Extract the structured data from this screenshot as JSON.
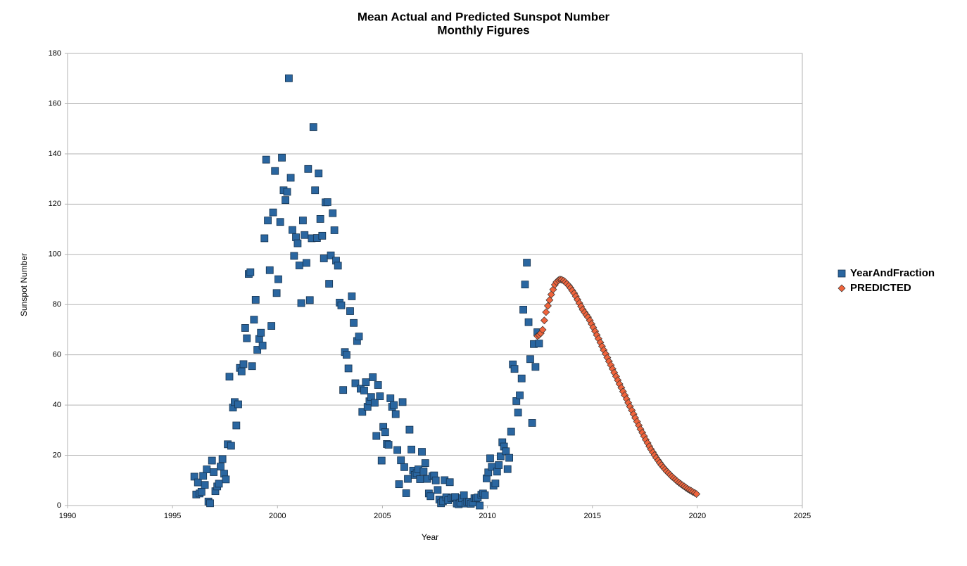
{
  "chart_data": {
    "type": "scatter",
    "title": "Mean Actual and Predicted Sunspot Number",
    "subtitle": "Monthly Figures",
    "x_label": "Year",
    "y_label": "Sunspot Number",
    "xlim": [
      1990,
      2025
    ],
    "xticks": [
      1990,
      1995,
      2000,
      2005,
      2010,
      2015,
      2020,
      2025
    ],
    "ylim": [
      0,
      180
    ],
    "yticks": [
      0,
      20,
      40,
      60,
      80,
      100,
      120,
      140,
      160,
      180
    ],
    "grid": true,
    "legend": "right",
    "series": [
      {
        "name": "YearAndFraction",
        "color": "#2a66a0",
        "marker": "square",
        "x": [
          1996.04,
          1996.13,
          1996.21,
          1996.29,
          1996.38,
          1996.46,
          1996.54,
          1996.63,
          1996.71,
          1996.79,
          1996.88,
          1996.96,
          1997.04,
          1997.13,
          1997.21,
          1997.29,
          1997.38,
          1997.46,
          1997.54,
          1997.63,
          1997.71,
          1997.79,
          1997.88,
          1997.96,
          1998.04,
          1998.13,
          1998.21,
          1998.29,
          1998.38,
          1998.46,
          1998.54,
          1998.63,
          1998.71,
          1998.79,
          1998.88,
          1998.96,
          1999.04,
          1999.13,
          1999.21,
          1999.29,
          1999.38,
          1999.46,
          1999.54,
          1999.63,
          1999.71,
          1999.79,
          1999.88,
          1999.96,
          2000.04,
          2000.13,
          2000.21,
          2000.29,
          2000.38,
          2000.46,
          2000.54,
          2000.63,
          2000.71,
          2000.79,
          2000.88,
          2000.96,
          2001.04,
          2001.13,
          2001.21,
          2001.29,
          2001.38,
          2001.46,
          2001.54,
          2001.63,
          2001.71,
          2001.79,
          2001.88,
          2001.96,
          2002.04,
          2002.13,
          2002.21,
          2002.29,
          2002.38,
          2002.46,
          2002.54,
          2002.63,
          2002.71,
          2002.79,
          2002.88,
          2002.96,
          2003.04,
          2003.13,
          2003.21,
          2003.29,
          2003.38,
          2003.46,
          2003.54,
          2003.63,
          2003.71,
          2003.79,
          2003.88,
          2003.96,
          2004.04,
          2004.13,
          2004.21,
          2004.29,
          2004.38,
          2004.46,
          2004.54,
          2004.63,
          2004.71,
          2004.79,
          2004.88,
          2004.96,
          2005.04,
          2005.13,
          2005.21,
          2005.29,
          2005.38,
          2005.46,
          2005.54,
          2005.63,
          2005.71,
          2005.79,
          2005.88,
          2005.96,
          2006.04,
          2006.13,
          2006.21,
          2006.29,
          2006.38,
          2006.46,
          2006.54,
          2006.63,
          2006.71,
          2006.79,
          2006.88,
          2006.96,
          2007.04,
          2007.13,
          2007.21,
          2007.29,
          2007.38,
          2007.46,
          2007.54,
          2007.63,
          2007.71,
          2007.79,
          2007.88,
          2007.96,
          2008.04,
          2008.13,
          2008.21,
          2008.29,
          2008.38,
          2008.46,
          2008.54,
          2008.63,
          2008.71,
          2008.79,
          2008.88,
          2008.96,
          2009.04,
          2009.13,
          2009.21,
          2009.29,
          2009.38,
          2009.46,
          2009.54,
          2009.63,
          2009.71,
          2009.79,
          2009.88,
          2009.96,
          2010.04,
          2010.13,
          2010.21,
          2010.29,
          2010.38,
          2010.46,
          2010.54,
          2010.63,
          2010.71,
          2010.79,
          2010.88,
          2010.96,
          2011.04,
          2011.13,
          2011.21,
          2011.29,
          2011.38,
          2011.46,
          2011.54,
          2011.63,
          2011.71,
          2011.79,
          2011.88,
          2011.96,
          2012.04,
          2012.13,
          2012.21,
          2012.29,
          2012.38,
          2012.46
        ],
        "values": [
          11.5,
          4.4,
          9.2,
          4.8,
          5.5,
          11.8,
          8.2,
          14.4,
          1.6,
          0.9,
          17.9,
          13.3,
          5.7,
          7.6,
          8.7,
          15.5,
          18.5,
          12.7,
          10.4,
          24.4,
          51.3,
          23.8,
          39.0,
          41.2,
          31.9,
          40.3,
          54.8,
          53.4,
          56.3,
          70.7,
          66.6,
          92.2,
          92.9,
          55.5,
          74.0,
          81.9,
          62.0,
          66.3,
          68.8,
          63.7,
          106.4,
          137.7,
          113.5,
          93.7,
          71.5,
          116.7,
          133.2,
          84.6,
          90.1,
          112.9,
          138.5,
          125.5,
          121.6,
          124.9,
          170.1,
          130.5,
          109.7,
          99.4,
          106.8,
          104.4,
          95.6,
          80.6,
          113.5,
          107.7,
          96.6,
          134.0,
          81.8,
          106.4,
          150.7,
          125.5,
          106.5,
          132.2,
          114.1,
          107.4,
          98.4,
          120.7,
          120.8,
          88.3,
          99.6,
          116.4,
          109.6,
          97.5,
          95.5,
          80.8,
          79.7,
          46.0,
          61.1,
          60.0,
          54.6,
          77.4,
          83.3,
          72.7,
          48.7,
          65.5,
          67.3,
          46.5,
          37.3,
          45.8,
          49.1,
          39.3,
          41.5,
          43.2,
          51.1,
          40.9,
          27.7,
          48.0,
          43.5,
          17.9,
          31.3,
          29.2,
          24.5,
          24.2,
          42.7,
          39.3,
          40.0,
          36.4,
          22.1,
          8.5,
          18.0,
          41.2,
          15.3,
          4.9,
          10.6,
          30.2,
          22.3,
          13.9,
          12.2,
          12.9,
          14.4,
          10.5,
          21.4,
          13.6,
          16.9,
          10.6,
          4.8,
          3.7,
          11.7,
          12.0,
          10.0,
          6.2,
          2.4,
          0.9,
          1.7,
          10.1,
          3.3,
          2.1,
          9.3,
          2.9,
          3.2,
          3.4,
          0.8,
          0.5,
          1.1,
          2.9,
          4.1,
          0.8,
          1.5,
          1.4,
          0.7,
          1.2,
          2.9,
          2.9,
          3.2,
          0.0,
          4.3,
          4.8,
          4.1,
          10.8,
          13.2,
          18.8,
          15.4,
          7.9,
          8.8,
          13.5,
          16.1,
          19.6,
          25.2,
          23.5,
          21.6,
          14.5,
          19.0,
          29.4,
          56.2,
          54.4,
          41.6,
          37.0,
          43.9,
          50.6,
          78.0,
          88.0,
          96.7,
          73.0,
          58.3,
          32.9,
          64.3,
          55.2,
          69.0,
          64.5
        ]
      },
      {
        "name": "PREDICTED",
        "color": "#f0643c",
        "marker": "diamond",
        "x": [
          2012.38,
          2012.46,
          2012.54,
          2012.63,
          2012.71,
          2012.79,
          2012.88,
          2012.96,
          2013.04,
          2013.13,
          2013.21,
          2013.29,
          2013.38,
          2013.46,
          2013.54,
          2013.63,
          2013.71,
          2013.79,
          2013.88,
          2013.96,
          2014.04,
          2014.13,
          2014.21,
          2014.29,
          2014.38,
          2014.46,
          2014.54,
          2014.63,
          2014.71,
          2014.79,
          2014.88,
          2014.96,
          2015.04,
          2015.13,
          2015.21,
          2015.29,
          2015.38,
          2015.46,
          2015.54,
          2015.63,
          2015.71,
          2015.79,
          2015.88,
          2015.96,
          2016.04,
          2016.13,
          2016.21,
          2016.29,
          2016.38,
          2016.46,
          2016.54,
          2016.63,
          2016.71,
          2016.79,
          2016.88,
          2016.96,
          2017.04,
          2017.13,
          2017.21,
          2017.29,
          2017.38,
          2017.46,
          2017.54,
          2017.63,
          2017.71,
          2017.79,
          2017.88,
          2017.96,
          2018.04,
          2018.13,
          2018.21,
          2018.29,
          2018.38,
          2018.46,
          2018.54,
          2018.63,
          2018.71,
          2018.79,
          2018.88,
          2018.96,
          2019.04,
          2019.13,
          2019.21,
          2019.29,
          2019.38,
          2019.46,
          2019.54,
          2019.63,
          2019.71,
          2019.79,
          2019.88,
          2019.96
        ],
        "values": [
          67.5,
          67.9,
          68.6,
          70.0,
          73.7,
          77.0,
          79.5,
          81.8,
          84.0,
          86.0,
          87.9,
          89.0,
          89.7,
          90.0,
          89.9,
          89.5,
          89.0,
          88.3,
          87.5,
          86.6,
          85.6,
          84.5,
          83.3,
          82.0,
          80.6,
          79.3,
          78.0,
          76.9,
          75.9,
          75.0,
          73.7,
          72.3,
          70.9,
          69.4,
          67.9,
          66.4,
          64.9,
          63.4,
          61.9,
          60.4,
          58.9,
          57.4,
          55.9,
          54.4,
          52.9,
          51.4,
          49.9,
          48.4,
          46.9,
          45.4,
          43.9,
          42.4,
          40.9,
          39.4,
          37.9,
          36.4,
          34.9,
          33.4,
          31.9,
          30.4,
          29.0,
          27.6,
          26.2,
          24.9,
          23.6,
          22.4,
          21.2,
          20.1,
          19.0,
          18.0,
          17.0,
          16.1,
          15.2,
          14.4,
          13.6,
          12.9,
          12.2,
          11.5,
          10.9,
          10.3,
          9.7,
          9.1,
          8.6,
          8.1,
          7.6,
          7.1,
          6.6,
          6.2,
          5.8,
          5.4,
          5.0,
          4.6
        ]
      }
    ]
  }
}
